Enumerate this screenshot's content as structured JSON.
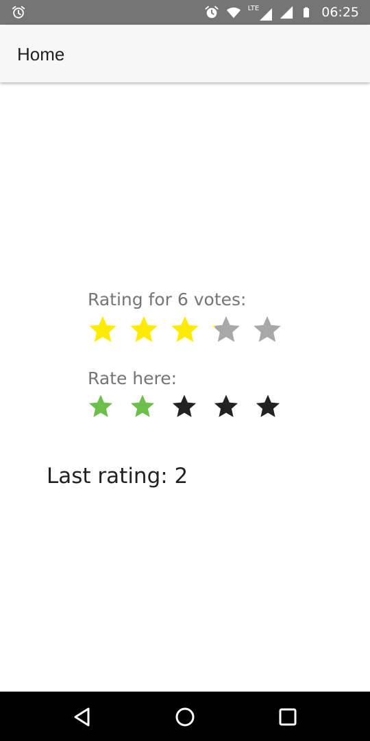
{
  "status_bar": {
    "time": "06:25",
    "network": "LTE",
    "icons": [
      "alarm-icon",
      "alarm-icon",
      "wifi-icon",
      "lte-signal-icon",
      "signal-icon",
      "battery-icon"
    ],
    "color": "#757575"
  },
  "app_bar": {
    "title": "Home"
  },
  "average_rating": {
    "label": "Rating for 6 votes:",
    "value": 3.1,
    "max": 5,
    "filled_color": "#ffeb00",
    "empty_color": "#a8a8a8"
  },
  "user_rating": {
    "label": "Rate here:",
    "value": 2,
    "max": 5,
    "filled_color": "#6cc04a",
    "empty_color": "#222222"
  },
  "last_rating": {
    "text": "Last rating: 2"
  },
  "nav_bar": {
    "buttons": [
      "back-icon",
      "home-icon",
      "recents-icon"
    ]
  }
}
